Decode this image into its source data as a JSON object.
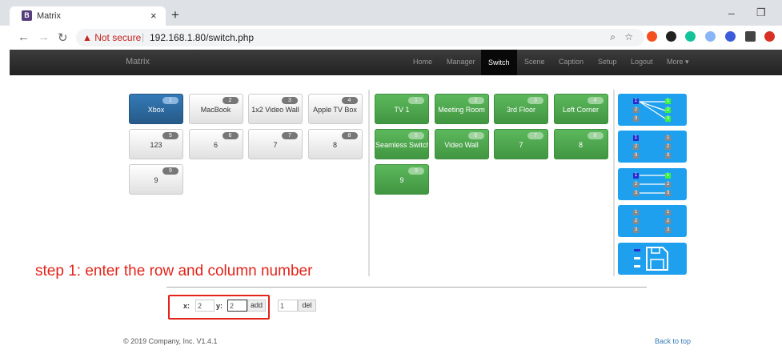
{
  "browser": {
    "tab_title": "Matrix",
    "favicon": "B",
    "close": "×",
    "new_tab": "+",
    "minimize": "–",
    "maximize": "❐",
    "not_secure": "Not secure",
    "url": "192.168.1.80/switch.php"
  },
  "navbar": {
    "brand": "Matrix",
    "items": [
      "Home",
      "Manager",
      "Switch",
      "Scene",
      "Caption",
      "Setup",
      "Logout",
      "More ▾"
    ],
    "active": "Switch"
  },
  "inputs": [
    {
      "n": "1",
      "label": "Xbox",
      "selected": true
    },
    {
      "n": "2",
      "label": "MacBook"
    },
    {
      "n": "3",
      "label": "1x2 Video Wall"
    },
    {
      "n": "4",
      "label": "Apple TV Box"
    },
    {
      "n": "5",
      "label": "123"
    },
    {
      "n": "6",
      "label": "6"
    },
    {
      "n": "7",
      "label": "7"
    },
    {
      "n": "8",
      "label": "8"
    },
    {
      "n": "9",
      "label": "9"
    }
  ],
  "outputs": [
    {
      "n": "1",
      "label": "TV 1"
    },
    {
      "n": "2",
      "label": "Meeting Room"
    },
    {
      "n": "3",
      "label": "3rd Floor"
    },
    {
      "n": "4",
      "label": "Left Corner"
    },
    {
      "n": "5",
      "label": "Seamless Switch"
    },
    {
      "n": "6",
      "label": "Video Wall"
    },
    {
      "n": "7",
      "label": "7"
    },
    {
      "n": "8",
      "label": "8"
    },
    {
      "n": "9",
      "label": "9"
    }
  ],
  "modes": [
    "one-to-many",
    "clear-all",
    "one-to-one",
    "reset",
    "save"
  ],
  "annotation": "step 1: enter the row and column number",
  "form": {
    "x_label": "x:",
    "x_value": "2",
    "y_label": "y:",
    "y_value": "2",
    "add": "add",
    "del_value": "1",
    "del": "del"
  },
  "footer": {
    "copyright": "© 2019 Company, Inc. V1.4.1",
    "back_to_top": "Back to top"
  },
  "colors": {
    "selected_input": "#337ab7",
    "output": "#5cb85c",
    "mode_button": "#1fa0ee",
    "annotation": "#e3241b"
  }
}
